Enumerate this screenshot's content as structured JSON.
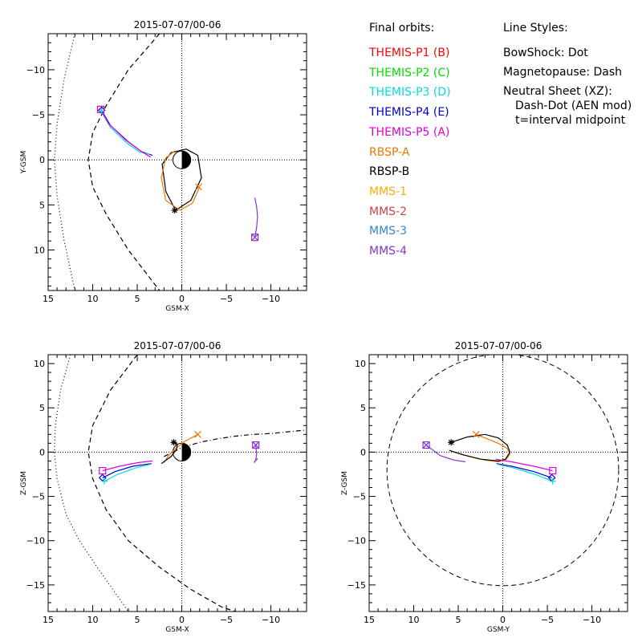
{
  "legend": {
    "orbits_header": "Final orbits:",
    "items": [
      {
        "label": "THEMIS-P1 (B)",
        "color": "#ff0000"
      },
      {
        "label": "THEMIS-P2 (C)",
        "color": "#00dd00"
      },
      {
        "label": "THEMIS-P3 (D)",
        "color": "#00dddd"
      },
      {
        "label": "THEMIS-P4 (E)",
        "color": "#0000cc"
      },
      {
        "label": "THEMIS-P5 (A)",
        "color": "#dd00dd"
      },
      {
        "label": "RBSP-A",
        "color": "#ee7700"
      },
      {
        "label": "RBSP-B",
        "color": "#000000"
      },
      {
        "label": "MMS-1",
        "color": "#f0b000"
      },
      {
        "label": "MMS-2",
        "color": "#cc4444"
      },
      {
        "label": "MMS-3",
        "color": "#3388cc"
      },
      {
        "label": "MMS-4",
        "color": "#8833cc"
      }
    ],
    "styles_header": "Line Styles:",
    "style_lines": [
      "BowShock: Dot",
      "Magnetopause: Dash",
      "Neutral Sheet (XZ):",
      "  Dash-Dot (AEN mod)",
      "  t=interval midpoint"
    ]
  },
  "chart_data": [
    {
      "type": "line",
      "title": "2015-07-07/00-06",
      "xlabel": "GSM-X",
      "ylabel": "Y-GSM",
      "xlim": [
        15,
        -14
      ],
      "ylim": [
        14.5,
        -14
      ],
      "xticks": [
        15,
        10,
        5,
        0,
        -5,
        -10
      ],
      "yticks": [
        -10,
        -5,
        0,
        5,
        10
      ],
      "series": [
        {
          "name": "bow-shock",
          "style": "dot",
          "color": "#000000",
          "x": [
            12.0,
            13.2,
            14.0,
            14.3,
            14.0,
            13.2,
            12.0
          ],
          "y": [
            -14.0,
            -9.0,
            -4.0,
            0.0,
            4.0,
            9.0,
            14.5
          ]
        },
        {
          "name": "magnetopause",
          "style": "dash",
          "color": "#000000",
          "x": [
            2.5,
            6.0,
            8.5,
            10.0,
            10.5,
            10.0,
            8.5,
            6.0,
            2.5
          ],
          "y": [
            -14.0,
            -10.0,
            -6.0,
            -3.0,
            0.0,
            3.0,
            6.0,
            10.0,
            14.5
          ]
        },
        {
          "name": "THEMIS-P4 (E)",
          "style": "solid",
          "color": "#0000cc",
          "x": [
            9.0,
            8.0,
            6.0,
            4.5,
            3.3
          ],
          "y": [
            -5.5,
            -3.8,
            -2.0,
            -0.9,
            -0.5
          ]
        },
        {
          "name": "THEMIS-P3 (D)",
          "style": "solid",
          "color": "#00dddd",
          "x": [
            9.0,
            8.0,
            6.2,
            4.8,
            3.6
          ],
          "y": [
            -5.3,
            -3.6,
            -1.9,
            -0.9,
            -0.6
          ]
        },
        {
          "name": "THEMIS-P5 (A)",
          "style": "solid",
          "color": "#dd00dd",
          "x": [
            9.1,
            8.2,
            6.3,
            4.5,
            3.5
          ],
          "y": [
            -5.6,
            -4.0,
            -2.2,
            -0.9,
            -0.3
          ]
        },
        {
          "name": "RBSP-B",
          "style": "solid",
          "color": "#000000",
          "x": [
            0.7,
            -1.0,
            -2.2,
            -1.8,
            -0.5,
            1.2,
            2.2,
            1.8,
            0.7
          ],
          "y": [
            5.6,
            4.5,
            2.0,
            -0.5,
            -1.2,
            -0.8,
            0.5,
            3.5,
            5.6
          ]
        },
        {
          "name": "RBSP-A",
          "style": "solid",
          "color": "#ee7700",
          "x": [
            -2.0,
            -1.2,
            0.2,
            1.8,
            2.3,
            1.8,
            0.8
          ],
          "y": [
            3.0,
            4.8,
            5.6,
            4.5,
            2.0,
            -0.2,
            -1.0
          ]
        },
        {
          "name": "MMS-4",
          "style": "solid",
          "color": "#8833cc",
          "x": [
            -8.2,
            -8.4,
            -8.5,
            -8.4,
            -8.2
          ],
          "y": [
            8.6,
            7.5,
            6.3,
            5.2,
            4.2
          ]
        }
      ],
      "markers": [
        {
          "type": "diamond",
          "color": "#0000cc",
          "x": 9.0,
          "y": -5.5
        },
        {
          "type": "square",
          "color": "#dd00dd",
          "x": 9.1,
          "y": -5.6
        },
        {
          "type": "plus",
          "color": "#00dddd",
          "x": 9.0,
          "y": -5.4
        },
        {
          "type": "asterisk",
          "color": "#000000",
          "x": 0.8,
          "y": 5.6
        },
        {
          "type": "cross",
          "color": "#ee7700",
          "x": -1.9,
          "y": 3.0
        },
        {
          "type": "square",
          "color": "#8833cc",
          "x": -8.2,
          "y": 8.6
        },
        {
          "type": "cross",
          "color": "#8833cc",
          "x": -8.2,
          "y": 8.6
        }
      ]
    },
    {
      "type": "line",
      "title": "2015-07-07/00-06",
      "xlabel": "GSM-X",
      "ylabel": "Z-GSM",
      "xlim": [
        15,
        -14
      ],
      "ylim": [
        -18,
        11
      ],
      "xticks": [
        15,
        10,
        5,
        0,
        -5,
        -10
      ],
      "yticks": [
        10,
        5,
        0,
        -5,
        -10,
        -15
      ],
      "series": [
        {
          "name": "bow-shock",
          "style": "dot",
          "color": "#000000",
          "x": [
            12.5,
            13.6,
            14.2,
            14.3,
            14.0,
            13.0,
            11.5,
            9.5,
            6.0
          ],
          "y": [
            11.0,
            7.0,
            3.0,
            0.0,
            -3.0,
            -7.0,
            -10.0,
            -13.0,
            -18.0
          ]
        },
        {
          "name": "magnetopause",
          "style": "dash",
          "color": "#000000",
          "x": [
            5.0,
            8.0,
            10.0,
            10.5,
            10.0,
            8.5,
            6.0,
            2.5,
            -1.0,
            -4.5,
            -6.0
          ],
          "y": [
            11.0,
            7.0,
            3.0,
            0.0,
            -3.0,
            -6.5,
            -10.0,
            -13.0,
            -15.5,
            -17.5,
            -18.0
          ]
        },
        {
          "name": "neutral-sheet",
          "style": "dashdot",
          "color": "#000000",
          "x": [
            2.0,
            0.0,
            -2.0,
            -4.0,
            -6.0,
            -8.0,
            -10.0,
            -12.0,
            -14.0
          ],
          "y": [
            -0.5,
            0.5,
            1.1,
            1.5,
            1.8,
            2.0,
            2.1,
            2.3,
            2.5
          ]
        },
        {
          "name": "THEMIS-P4 (E)",
          "style": "solid",
          "color": "#0000cc",
          "x": [
            8.9,
            7.5,
            5.5,
            3.4
          ],
          "y": [
            -2.9,
            -2.2,
            -1.6,
            -1.3
          ]
        },
        {
          "name": "THEMIS-P3 (D)",
          "style": "solid",
          "color": "#00dddd",
          "x": [
            8.7,
            7.2,
            5.2,
            3.6
          ],
          "y": [
            -3.3,
            -2.5,
            -1.8,
            -1.4
          ]
        },
        {
          "name": "THEMIS-P5 (A)",
          "style": "solid",
          "color": "#dd00dd",
          "x": [
            8.9,
            7.0,
            5.0,
            3.3
          ],
          "y": [
            -2.1,
            -1.6,
            -1.2,
            -1.0
          ]
        },
        {
          "name": "RBSP-A",
          "style": "solid",
          "color": "#ee7700",
          "x": [
            2.0,
            1.5,
            0.7,
            -0.3,
            -1.8
          ],
          "y": [
            -1.2,
            -0.4,
            0.4,
            1.2,
            2.0
          ]
        },
        {
          "name": "RBSP-B",
          "style": "solid",
          "color": "#000000",
          "x": [
            2.3,
            1.2,
            0.6,
            0.5,
            0.9
          ],
          "y": [
            -1.3,
            -0.5,
            0.3,
            0.9,
            1.1
          ]
        },
        {
          "name": "MMS-4",
          "style": "solid",
          "color": "#8833cc",
          "x": [
            -8.3,
            -8.4,
            -8.3,
            -8.1,
            -8.5
          ],
          "y": [
            0.8,
            -0.2,
            -0.9,
            -1.2,
            -0.7
          ]
        }
      ],
      "markers": [
        {
          "type": "diamond",
          "color": "#0000cc",
          "x": 8.9,
          "y": -2.9
        },
        {
          "type": "square",
          "color": "#dd00dd",
          "x": 8.9,
          "y": -2.1
        },
        {
          "type": "plus",
          "color": "#00dddd",
          "x": 8.7,
          "y": -3.3
        },
        {
          "type": "asterisk",
          "color": "#000000",
          "x": 0.9,
          "y": 1.1
        },
        {
          "type": "cross",
          "color": "#ee7700",
          "x": -1.8,
          "y": 2.0
        },
        {
          "type": "square",
          "color": "#8833cc",
          "x": -8.3,
          "y": 0.8
        },
        {
          "type": "cross",
          "color": "#8833cc",
          "x": -8.3,
          "y": 0.8
        }
      ]
    },
    {
      "type": "line",
      "title": "2015-07-07/00-06",
      "xlabel": "GSM-Y",
      "ylabel": "Z-GSM",
      "xlim": [
        15,
        -14
      ],
      "ylim": [
        -18,
        11
      ],
      "xticks": [
        15,
        10,
        5,
        0,
        -5,
        -10
      ],
      "yticks": [
        10,
        5,
        0,
        -5,
        -10,
        -15
      ],
      "series": [
        {
          "name": "RBSP-A",
          "style": "solid",
          "color": "#ee7700",
          "x": [
            3.0,
            1.5,
            0.3,
            -0.5,
            -0.8,
            -0.4,
            0.5,
            2.0,
            4.0,
            5.5
          ],
          "y": [
            2.0,
            1.4,
            0.9,
            0.4,
            -0.2,
            -0.8,
            -1.1,
            -0.9,
            -0.4,
            0.0
          ]
        },
        {
          "name": "RBSP-B",
          "style": "solid",
          "color": "#000000",
          "x": [
            5.8,
            4.0,
            2.0,
            0.5,
            -0.5,
            -0.8,
            -0.3,
            0.5,
            2.5,
            4.5,
            6.0
          ],
          "y": [
            1.1,
            1.7,
            2.0,
            1.6,
            0.8,
            0.0,
            -0.8,
            -1.0,
            -0.8,
            -0.3,
            0.2
          ]
        },
        {
          "name": "THEMIS-P5 (A)",
          "style": "solid",
          "color": "#dd00dd",
          "x": [
            -5.6,
            -3.5,
            -1.0,
            0.8
          ],
          "y": [
            -2.1,
            -1.6,
            -1.1,
            -0.8
          ]
        },
        {
          "name": "THEMIS-P4 (E)",
          "style": "solid",
          "color": "#0000cc",
          "x": [
            -5.5,
            -3.5,
            -1.0,
            0.7
          ],
          "y": [
            -2.9,
            -2.2,
            -1.6,
            -1.3
          ]
        },
        {
          "name": "THEMIS-P3 (D)",
          "style": "solid",
          "color": "#00dddd",
          "x": [
            -5.6,
            -3.6,
            -1.2,
            0.5
          ],
          "y": [
            -3.3,
            -2.5,
            -1.8,
            -1.4
          ]
        },
        {
          "name": "MMS-4",
          "style": "solid",
          "color": "#8833cc",
          "x": [
            8.6,
            7.0,
            5.5,
            4.2
          ],
          "y": [
            0.8,
            -0.4,
            -0.9,
            -1.1
          ]
        }
      ],
      "circle": {
        "cx": 0,
        "cy": -2,
        "r": 13,
        "style": "dash",
        "color": "#000000"
      },
      "markers": [
        {
          "type": "diamond",
          "color": "#0000cc",
          "x": -5.5,
          "y": -2.9
        },
        {
          "type": "square",
          "color": "#dd00dd",
          "x": -5.6,
          "y": -2.1
        },
        {
          "type": "plus",
          "color": "#00dddd",
          "x": -5.6,
          "y": -3.3
        },
        {
          "type": "asterisk",
          "color": "#000000",
          "x": 5.8,
          "y": 1.1
        },
        {
          "type": "cross",
          "color": "#ee7700",
          "x": 3.0,
          "y": 2.0
        },
        {
          "type": "square",
          "color": "#8833cc",
          "x": 8.6,
          "y": 0.8
        },
        {
          "type": "cross",
          "color": "#8833cc",
          "x": 8.6,
          "y": 0.8
        }
      ]
    }
  ]
}
